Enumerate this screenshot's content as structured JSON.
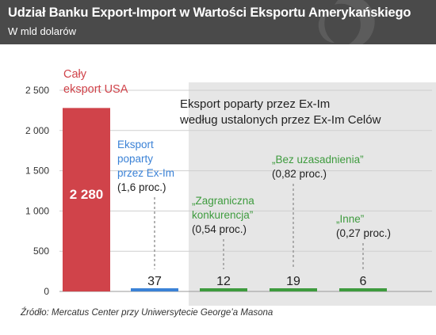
{
  "title": "Udział Banku Export-Import w Wartości Eksportu Amerykańskiego",
  "subtitle": "W mld dolarów",
  "source": "Źródło: Mercatus Center przy Uniwersytecie George’a Masona",
  "colors": {
    "header_bg": "#4a4a4a",
    "total": "#d0434a",
    "supported": "#3b82d6",
    "category": "#3e9b3e",
    "shaded_region": "#e6e6e6",
    "text": "#222222"
  },
  "chart_data": {
    "type": "bar",
    "ylim": [
      0,
      2500
    ],
    "yticks": [
      0,
      500,
      1000,
      1500,
      2000,
      2500
    ],
    "ytick_labels": [
      "0",
      "500",
      "1 000",
      "1 500",
      "2 000",
      "2 500"
    ],
    "grid": true,
    "region_label": [
      "Eksport poparty przez Ex-Im",
      "według ustalonych przez Ex-Im Celów"
    ],
    "bars": [
      {
        "value": 2280,
        "value_label": "2 280",
        "color": "#d0434a",
        "label_lines": [
          "Cały",
          "eksport USA"
        ],
        "note": ""
      },
      {
        "value": 37,
        "value_label": "37",
        "color": "#3b82d6",
        "label_lines": [
          "Eksport",
          "poparty",
          "przez Ex-Im"
        ],
        "note": "(1,6 proc.)"
      },
      {
        "value": 12,
        "value_label": "12",
        "color": "#3e9b3e",
        "label_lines": [
          "„Zagraniczna",
          "konkurencja”"
        ],
        "note": "(0,54 proc.)"
      },
      {
        "value": 19,
        "value_label": "19",
        "color": "#3e9b3e",
        "label_lines": [
          "„Bez uzasadnienia”"
        ],
        "note": "(0,82 proc.)"
      },
      {
        "value": 6,
        "value_label": "6",
        "color": "#3e9b3e",
        "label_lines": [
          "„Inne”"
        ],
        "note": "(0,27 proc.)"
      }
    ]
  }
}
